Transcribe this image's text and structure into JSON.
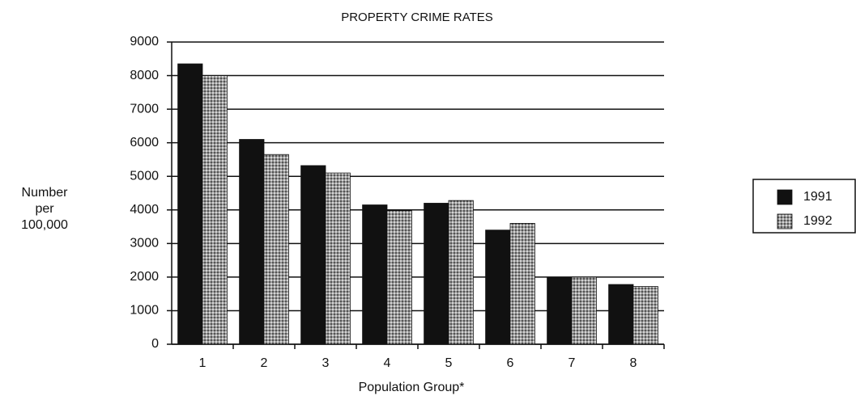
{
  "chart_data": {
    "type": "bar",
    "title": "PROPERTY CRIME RATES",
    "ylabel": [
      "Number",
      "per",
      "100,000"
    ],
    "xlabel": "Population Group*",
    "categories": [
      "1",
      "2",
      "3",
      "4",
      "5",
      "6",
      "7",
      "8"
    ],
    "series": [
      {
        "name": "1991",
        "color": "#111111",
        "values": [
          8350,
          6100,
          5320,
          4150,
          4200,
          3400,
          2000,
          1780
        ]
      },
      {
        "name": "1992",
        "color": "#9a9a9a",
        "values": [
          8000,
          5650,
          5100,
          3980,
          4280,
          3600,
          2000,
          1720
        ]
      }
    ],
    "ylim": [
      0,
      9000
    ],
    "yticks": [
      0,
      1000,
      2000,
      3000,
      4000,
      5000,
      6000,
      7000,
      8000,
      9000
    ],
    "grid": true,
    "legend": "right"
  }
}
